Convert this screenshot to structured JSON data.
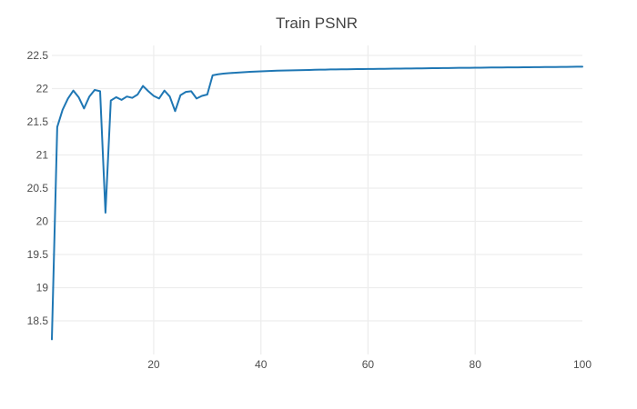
{
  "title": "Train PSNR",
  "chart_data": {
    "type": "line",
    "title": "Train PSNR",
    "xlabel": "",
    "ylabel": "",
    "xlim": [
      1,
      100
    ],
    "ylim": [
      18.02,
      22.65
    ],
    "x_ticks": [
      20,
      40,
      60,
      80,
      100
    ],
    "x_tick_labels": [
      "20",
      "40",
      "60",
      "80",
      "100"
    ],
    "x_grid_ticks": [
      20,
      40,
      60,
      80
    ],
    "y_ticks": [
      18.5,
      19,
      19.5,
      20,
      20.5,
      21,
      21.5,
      22,
      22.5
    ],
    "y_tick_labels": [
      "18.5",
      "19",
      "19.5",
      "20",
      "20.5",
      "21",
      "21.5",
      "22",
      "22.5"
    ],
    "grid": true,
    "legend": false,
    "colors": {
      "line": "#1f77b4",
      "grid": "#ededed",
      "title": "#444444",
      "tick": "#4d4d4d",
      "background": "#ffffff"
    },
    "series": [
      {
        "name": "Train PSNR",
        "color": "#1f77b4",
        "x": [
          1,
          2,
          3,
          4,
          5,
          6,
          7,
          8,
          9,
          10,
          11,
          12,
          13,
          14,
          15,
          16,
          17,
          18,
          19,
          20,
          21,
          22,
          23,
          24,
          25,
          26,
          27,
          28,
          29,
          30,
          31,
          32,
          33,
          34,
          35,
          36,
          37,
          38,
          39,
          40,
          41,
          42,
          43,
          44,
          45,
          46,
          47,
          48,
          49,
          50,
          51,
          52,
          53,
          54,
          55,
          56,
          57,
          58,
          59,
          60,
          61,
          62,
          63,
          64,
          65,
          66,
          67,
          68,
          69,
          70,
          71,
          72,
          73,
          74,
          75,
          76,
          77,
          78,
          79,
          80,
          81,
          82,
          83,
          84,
          85,
          86,
          87,
          88,
          89,
          90,
          91,
          92,
          93,
          94,
          95,
          96,
          97,
          98,
          99,
          100
        ],
        "y": [
          18.22,
          21.42,
          21.68,
          21.85,
          21.97,
          21.87,
          21.7,
          21.88,
          21.98,
          21.96,
          20.13,
          21.82,
          21.87,
          21.83,
          21.88,
          21.86,
          21.91,
          22.04,
          21.96,
          21.89,
          21.85,
          21.97,
          21.88,
          21.66,
          21.9,
          21.95,
          21.96,
          21.85,
          21.89,
          21.91,
          22.2,
          22.215,
          22.225,
          22.232,
          22.238,
          22.243,
          22.248,
          22.252,
          22.256,
          22.26,
          22.263,
          22.266,
          22.269,
          22.271,
          22.273,
          22.275,
          22.277,
          22.279,
          22.281,
          22.283,
          22.285,
          22.286,
          22.288,
          22.289,
          22.29,
          22.291,
          22.292,
          22.293,
          22.294,
          22.295,
          22.296,
          22.297,
          22.298,
          22.299,
          22.3,
          22.301,
          22.302,
          22.303,
          22.304,
          22.305,
          22.306,
          22.307,
          22.308,
          22.309,
          22.31,
          22.311,
          22.312,
          22.312,
          22.313,
          22.314,
          22.315,
          22.316,
          22.317,
          22.317,
          22.318,
          22.319,
          22.32,
          22.32,
          22.321,
          22.322,
          22.323,
          22.323,
          22.324,
          22.325,
          22.325,
          22.326,
          22.327,
          22.328,
          22.329,
          22.33
        ]
      }
    ]
  }
}
